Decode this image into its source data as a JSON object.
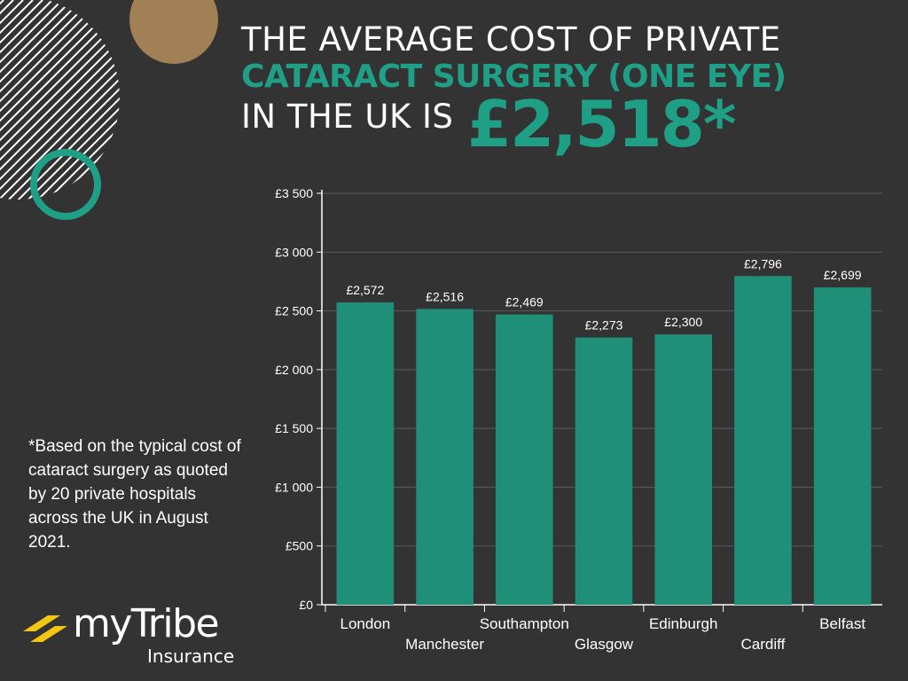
{
  "header": {
    "line1": "THE AVERAGE COST OF PRIVATE",
    "line2": "CATARACT SURGERY (ONE EYE)",
    "line3": "IN THE UK IS",
    "highlight": "£2,518*"
  },
  "footnote": "*Based on the typical cost of cataract surgery as quoted by 20 private hospitals across the UK in August 2021.",
  "logo": {
    "name": "myTribe",
    "subtitle": "Insurance",
    "icon": "tribe-chevron-icon"
  },
  "colors": {
    "background": "#333333",
    "accent": "#1f9f86",
    "bar": "#1f8f78",
    "gold": "#a08054",
    "logo_yellow": "#f3c614"
  },
  "chart_data": {
    "type": "bar",
    "categories": [
      "London",
      "Manchester",
      "Southampton",
      "Glasgow",
      "Edinburgh",
      "Cardiff",
      "Belfast"
    ],
    "values": [
      2572,
      2516,
      2469,
      2273,
      2300,
      2796,
      2699
    ],
    "data_labels": [
      "£2,572",
      "£2,516",
      "£2,469",
      "£2,273",
      "£2,300",
      "£2,796",
      "£2,699"
    ],
    "y_ticks": [
      0,
      500,
      1000,
      1500,
      2000,
      2500,
      3000,
      3500
    ],
    "y_tick_labels": [
      "£0",
      "£500",
      "£1 000",
      "£1 500",
      "£2 000",
      "£2 500",
      "£3 000",
      "£3 500"
    ],
    "ylim": [
      0,
      3500
    ],
    "grid": true,
    "title": "",
    "xlabel": "",
    "ylabel": ""
  }
}
